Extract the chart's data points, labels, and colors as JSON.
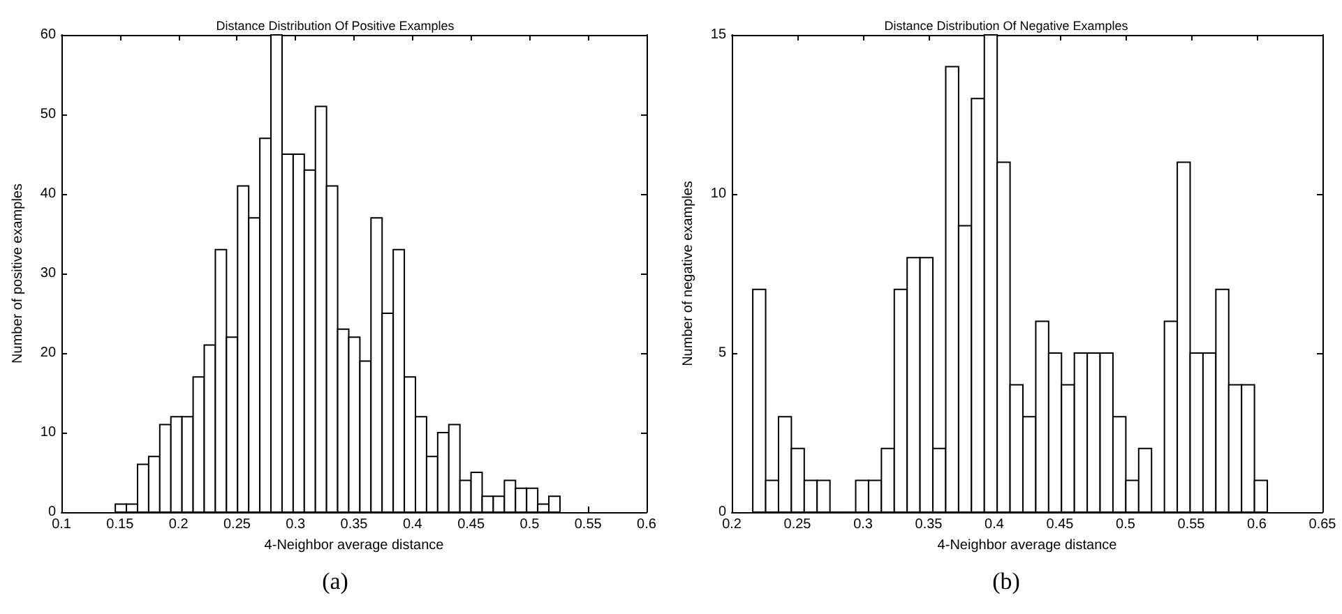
{
  "chart_data": [
    {
      "type": "histogram",
      "title": "Distance Distribution Of Positive Examples",
      "xlabel": "4-Neighbor average distance",
      "ylabel": "Number of positive examples",
      "annotations": [
        "(a)"
      ],
      "bins": [
        0.146,
        0.1555,
        0.165,
        0.1745,
        0.184,
        0.1935,
        0.203,
        0.2125,
        0.222,
        0.2315,
        0.241,
        0.2505,
        0.26,
        0.2695,
        0.279,
        0.2885,
        0.298,
        0.3075,
        0.317,
        0.3265,
        0.336,
        0.3455,
        0.355,
        0.3645,
        0.374,
        0.3835,
        0.393,
        0.4025,
        0.412,
        0.4215,
        0.431,
        0.4405,
        0.45,
        0.4595,
        0.469,
        0.4785,
        0.488,
        0.4975,
        0.507,
        0.5165,
        0.526
      ],
      "values": [
        1,
        1,
        6,
        7,
        11,
        12,
        12,
        17,
        21,
        33,
        22,
        41,
        37,
        47,
        60,
        45,
        45,
        43,
        51,
        41,
        23,
        22,
        19,
        37,
        25,
        33,
        17,
        12,
        7,
        10,
        11,
        4,
        5,
        2,
        2,
        4,
        3,
        3,
        1,
        2
      ],
      "color": "#ffffff",
      "xlim": [
        0.1,
        0.6
      ],
      "xticks": [
        0.1,
        0.15,
        0.2,
        0.25,
        0.3,
        0.35,
        0.4,
        0.45,
        0.5,
        0.55,
        0.6
      ],
      "ylim": [
        0,
        60
      ],
      "yticks": [
        0,
        10,
        20,
        30,
        40,
        50,
        60
      ]
    },
    {
      "type": "histogram",
      "title": "Distance Distribution Of Negative Examples",
      "xlabel": "4-Neighbor average distance",
      "ylabel": "Number of negative examples",
      "annotations": [
        "(b)"
      ],
      "bins": [
        0.216,
        0.2258,
        0.2356,
        0.2454,
        0.2552,
        0.265,
        0.2748,
        0.2846,
        0.2944,
        0.3042,
        0.314,
        0.3238,
        0.3336,
        0.3434,
        0.3532,
        0.363,
        0.3728,
        0.3826,
        0.3924,
        0.4022,
        0.412,
        0.4218,
        0.4316,
        0.4414,
        0.4512,
        0.461,
        0.4708,
        0.4806,
        0.4904,
        0.5002,
        0.51,
        0.5198,
        0.5296,
        0.5394,
        0.5492,
        0.559,
        0.5688,
        0.5786,
        0.5884,
        0.5982,
        0.608
      ],
      "values": [
        7,
        1,
        3,
        2,
        1,
        1,
        0,
        0,
        1,
        1,
        2,
        7,
        8,
        8,
        2,
        14,
        9,
        13,
        15,
        11,
        4,
        3,
        6,
        5,
        4,
        5,
        5,
        5,
        3,
        1,
        2,
        0,
        6,
        11,
        5,
        5,
        7,
        4,
        4,
        1
      ],
      "color": "#ffffff",
      "xlim": [
        0.2,
        0.65
      ],
      "xticks": [
        0.2,
        0.25,
        0.3,
        0.35,
        0.4,
        0.45,
        0.5,
        0.55,
        0.6,
        0.65
      ],
      "ylim": [
        0,
        15
      ],
      "yticks": [
        0,
        5,
        10,
        15
      ]
    }
  ]
}
